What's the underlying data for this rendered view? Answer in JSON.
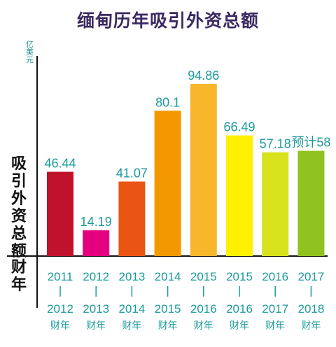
{
  "title": "缅甸历年吸引外资总额",
  "unit": "亿美元",
  "ylabel": "吸引外资总额",
  "xlabel": "财年",
  "chart_data": {
    "type": "bar",
    "title": "缅甸历年吸引外资总额",
    "ylabel": "吸引外资总额",
    "xlabel": "财年",
    "unit": "亿美元",
    "categories": [
      {
        "start": "2011",
        "end": "2012",
        "suffix": "财年"
      },
      {
        "start": "2012",
        "end": "2013",
        "suffix": "财年"
      },
      {
        "start": "2013",
        "end": "2014",
        "suffix": "财年"
      },
      {
        "start": "2014",
        "end": "2015",
        "suffix": "财年"
      },
      {
        "start": "2015",
        "end": "2016",
        "suffix": "财年"
      },
      {
        "start": "2015",
        "end": "2016",
        "suffix": "财年"
      },
      {
        "start": "2016",
        "end": "2017",
        "suffix": "财年"
      },
      {
        "start": "2017",
        "end": "2018",
        "suffix": "财年"
      }
    ],
    "values": [
      46.44,
      14.19,
      41.07,
      80.1,
      94.86,
      66.49,
      57.18,
      58
    ],
    "value_labels": [
      "46.44",
      "14.19",
      "41.07",
      "80.1",
      "94.86",
      "66.49",
      "57.18",
      "预计58"
    ],
    "colors": [
      "#c0122b",
      "#e4007f",
      "#ea5514",
      "#f39800",
      "#f8b62d",
      "#fff100",
      "#d7e21c",
      "#8fc31f"
    ],
    "label_color": "#1a9a9a",
    "ylim": [
      0,
      100
    ],
    "grid": false,
    "legend": "none"
  }
}
